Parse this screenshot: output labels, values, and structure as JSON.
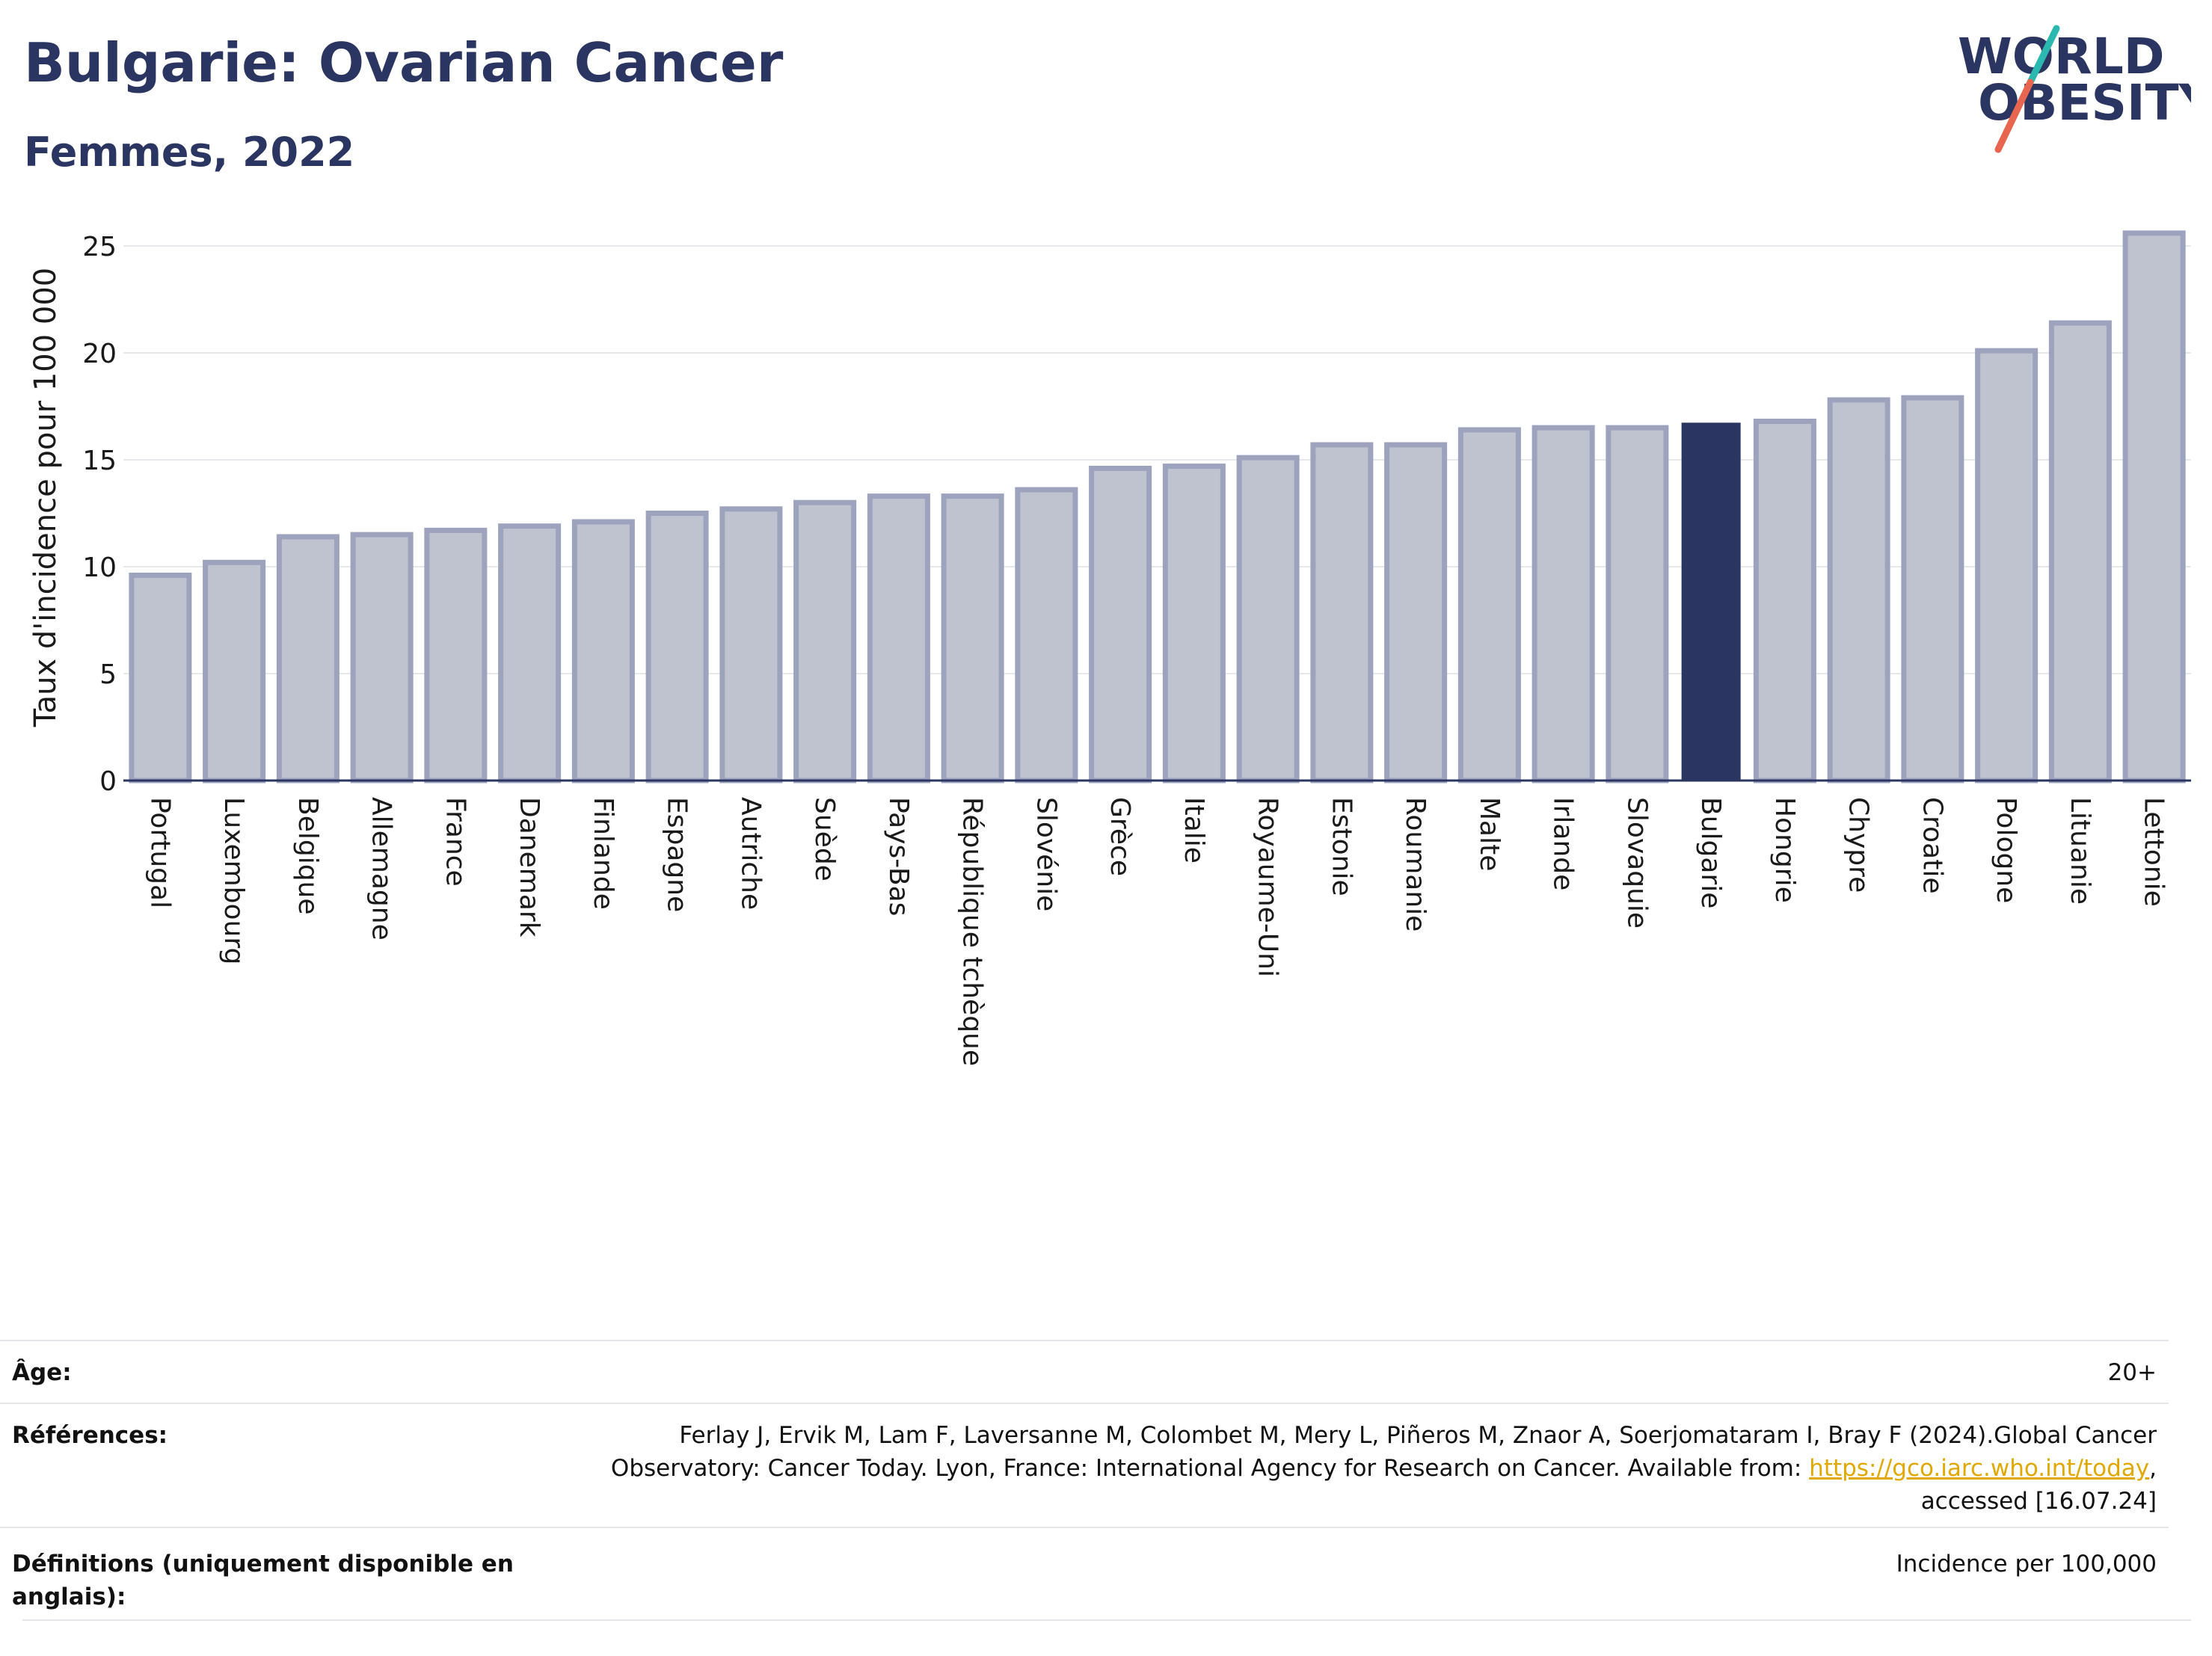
{
  "header": {
    "title": "Bulgarie: Ovarian Cancer",
    "subtitle": "Femmes, 2022"
  },
  "logo": {
    "line1": "WORLD",
    "line2": "OBESITY",
    "accent_colors": [
      "#2bb8b0",
      "#e8664f"
    ]
  },
  "colors": {
    "bar_fill": "#bfc3d0",
    "bar_stroke": "#9ea3bd",
    "highlight": "#2b3561",
    "grid": "#e6e8ec",
    "axis_line": "#2b3561"
  },
  "chart_data": {
    "type": "bar",
    "ylabel": "Taux d'incidence pour 100 000",
    "ylim": [
      0,
      26
    ],
    "yticks": [
      0,
      5,
      10,
      15,
      20,
      25
    ],
    "grid": true,
    "highlight_category": "Bulgarie",
    "categories": [
      "Portugal",
      "Luxembourg",
      "Belgique",
      "Allemagne",
      "France",
      "Danemark",
      "Finlande",
      "Espagne",
      "Autriche",
      "Suède",
      "Pays-Bas",
      "République tchèque",
      "Slovénie",
      "Grèce",
      "Italie",
      "Royaume-Uni",
      "Estonie",
      "Roumanie",
      "Malte",
      "Irlande",
      "Slovaquie",
      "Bulgarie",
      "Hongrie",
      "Chypre",
      "Croatie",
      "Pologne",
      "Lituanie",
      "Lettonie"
    ],
    "values": [
      9.6,
      10.2,
      11.4,
      11.5,
      11.7,
      11.9,
      12.1,
      12.5,
      12.7,
      13.0,
      13.3,
      13.3,
      13.6,
      14.6,
      14.7,
      15.1,
      15.7,
      15.7,
      16.4,
      16.5,
      16.5,
      16.7,
      16.8,
      17.8,
      17.9,
      20.1,
      21.4,
      25.6
    ]
  },
  "meta": {
    "age_label": "Âge:",
    "age_value": "20+",
    "refs_label": "Références:",
    "refs_line1": "Ferlay J, Ervik M, Lam F, Laversanne M, Colombet M, Mery L, Piñeros M, Znaor A, Soerjomataram I, Bray F (2024).Global Cancer",
    "refs_line2_prefix": "Observatory: Cancer Today. Lyon, France: International Agency for Research on Cancer. Available from: ",
    "refs_link": "https://gco.iarc.who.int/today",
    "refs_line2_suffix": ",",
    "refs_line3": "accessed [16.07.24]",
    "defs_label": "Définitions (uniquement disponible en anglais):",
    "defs_value": "Incidence per 100,000"
  }
}
